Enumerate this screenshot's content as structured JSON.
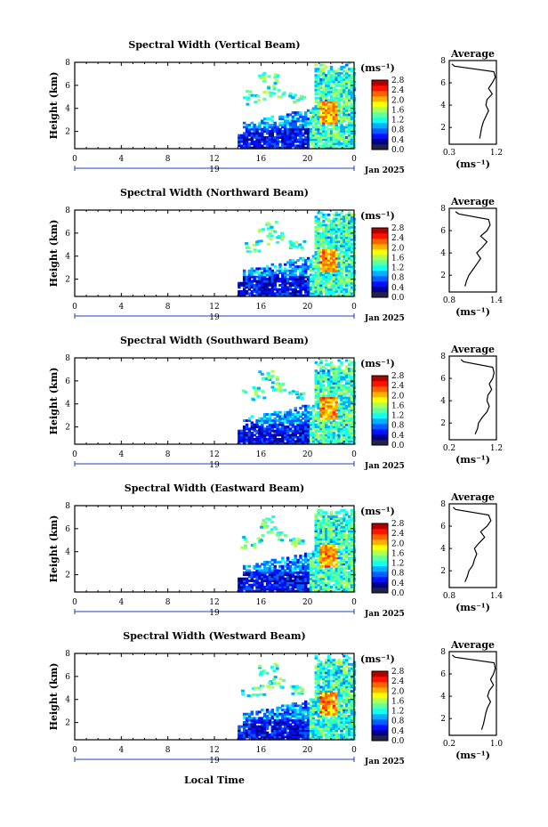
{
  "colors": {
    "colorbar": [
      "#222244",
      "#000090",
      "#0010ff",
      "#0060ff",
      "#00b0ff",
      "#10ffef",
      "#60ffa0",
      "#b0ff50",
      "#ffff00",
      "#ffb000",
      "#ff6000",
      "#ff1000",
      "#b00000"
    ],
    "axis": "#000000",
    "date_line": "#1f3fbf"
  },
  "shared": {
    "x_ticks": [
      "0",
      "4",
      "8",
      "12",
      "16",
      "20",
      "0"
    ],
    "day_label": "19",
    "date_label": "Jan 2025",
    "x_axis_label": "Local Time",
    "y_ticks": [
      "2",
      "4",
      "6",
      "8"
    ],
    "y_label": "Height (km)",
    "units_label": "(ms⁻¹)",
    "avg_title": "Average",
    "avg_xlabel": "(ms⁻¹)"
  },
  "chart_data": [
    {
      "type": "heatmap",
      "title": "Spectral Width (Vertical Beam)",
      "x_range": [
        0,
        24
      ],
      "y_range": [
        0.5,
        8.0
      ],
      "colorbar_ticks": [
        "0.0",
        "0.4",
        "0.8",
        "1.2",
        "1.6",
        "2.0",
        "2.4",
        "2.8"
      ],
      "colorbar_range": [
        0.0,
        2.8
      ],
      "profile": {
        "type": "line",
        "xticks": [
          "0.3",
          "1.2"
        ],
        "xlim": [
          0.3,
          1.2
        ],
        "ylim": [
          0.5,
          8.0
        ],
        "height": [
          1.0,
          1.5,
          2.0,
          2.5,
          3.0,
          3.5,
          4.0,
          4.5,
          5.0,
          5.5,
          6.0,
          6.5,
          7.0,
          7.5,
          7.7
        ],
        "value": [
          0.88,
          0.9,
          0.92,
          0.95,
          1.0,
          1.05,
          1.0,
          1.02,
          1.12,
          1.05,
          1.12,
          1.18,
          1.15,
          0.4,
          0.35
        ]
      }
    },
    {
      "type": "heatmap",
      "title": "Spectral Width (Northward Beam)",
      "x_range": [
        0,
        24
      ],
      "y_range": [
        0.5,
        8.0
      ],
      "colorbar_ticks": [
        "0.0",
        "0.4",
        "0.8",
        "1.2",
        "1.6",
        "2.0",
        "2.4",
        "2.8"
      ],
      "colorbar_range": [
        0.0,
        2.8
      ],
      "profile": {
        "type": "line",
        "xticks": [
          "0.8",
          "1.4"
        ],
        "xlim": [
          0.8,
          1.4
        ],
        "ylim": [
          0.5,
          8.0
        ],
        "height": [
          1.0,
          1.5,
          2.0,
          2.5,
          3.0,
          3.5,
          4.0,
          4.5,
          5.0,
          5.5,
          6.0,
          6.5,
          7.0,
          7.5,
          7.7
        ],
        "value": [
          1.0,
          1.02,
          1.05,
          1.1,
          1.15,
          1.2,
          1.15,
          1.22,
          1.28,
          1.2,
          1.28,
          1.32,
          1.3,
          0.92,
          0.88
        ]
      }
    },
    {
      "type": "heatmap",
      "title": "Spectral Width (Southward Beam)",
      "x_range": [
        0,
        24
      ],
      "y_range": [
        0.5,
        8.0
      ],
      "colorbar_ticks": [
        "0.0",
        "0.4",
        "0.8",
        "1.2",
        "1.6",
        "2.0",
        "2.4",
        "2.8"
      ],
      "colorbar_range": [
        0.0,
        2.8
      ],
      "profile": {
        "type": "line",
        "xticks": [
          "0.2",
          "1.2"
        ],
        "xlim": [
          0.2,
          1.2
        ],
        "ylim": [
          0.5,
          8.0
        ],
        "height": [
          1.0,
          1.5,
          2.0,
          2.5,
          3.0,
          3.5,
          4.0,
          4.5,
          5.0,
          5.5,
          6.0,
          6.5,
          7.0,
          7.5,
          7.7
        ],
        "value": [
          0.75,
          0.8,
          0.82,
          0.9,
          1.0,
          1.05,
          1.0,
          1.02,
          1.1,
          1.05,
          1.12,
          1.15,
          1.12,
          0.5,
          0.45
        ]
      }
    },
    {
      "type": "heatmap",
      "title": "Spectral Width (Eastward Beam)",
      "x_range": [
        0,
        24
      ],
      "y_range": [
        0.5,
        8.0
      ],
      "colorbar_ticks": [
        "0.0",
        "0.4",
        "0.8",
        "1.2",
        "1.6",
        "2.0",
        "2.4",
        "2.8"
      ],
      "colorbar_range": [
        0.0,
        2.8
      ],
      "profile": {
        "type": "line",
        "xticks": [
          "0.8",
          "1.4"
        ],
        "xlim": [
          0.8,
          1.4
        ],
        "ylim": [
          0.5,
          8.0
        ],
        "height": [
          1.0,
          1.5,
          2.0,
          2.5,
          3.0,
          3.5,
          4.0,
          4.5,
          5.0,
          5.5,
          6.0,
          6.5,
          7.0,
          7.5,
          7.7
        ],
        "value": [
          1.0,
          1.03,
          1.05,
          1.1,
          1.12,
          1.15,
          1.12,
          1.18,
          1.25,
          1.2,
          1.28,
          1.33,
          1.3,
          0.88,
          0.85
        ]
      }
    },
    {
      "type": "heatmap",
      "title": "Spectral Width (Westward Beam)",
      "x_range": [
        0,
        24
      ],
      "y_range": [
        0.5,
        8.0
      ],
      "colorbar_ticks": [
        "0.0",
        "0.4",
        "0.8",
        "1.2",
        "1.6",
        "2.0",
        "2.4",
        "2.8"
      ],
      "colorbar_range": [
        0.0,
        2.8
      ],
      "profile": {
        "type": "line",
        "xticks": [
          "0.2",
          "1.0"
        ],
        "xlim": [
          0.2,
          1.0
        ],
        "ylim": [
          0.5,
          8.0
        ],
        "height": [
          1.0,
          1.5,
          2.0,
          2.5,
          3.0,
          3.5,
          4.0,
          4.5,
          5.0,
          5.5,
          6.0,
          6.5,
          7.0,
          7.5,
          7.7
        ],
        "value": [
          0.75,
          0.78,
          0.8,
          0.82,
          0.85,
          0.9,
          0.85,
          0.88,
          0.95,
          0.9,
          0.95,
          0.98,
          0.96,
          0.3,
          0.25
        ]
      }
    }
  ]
}
